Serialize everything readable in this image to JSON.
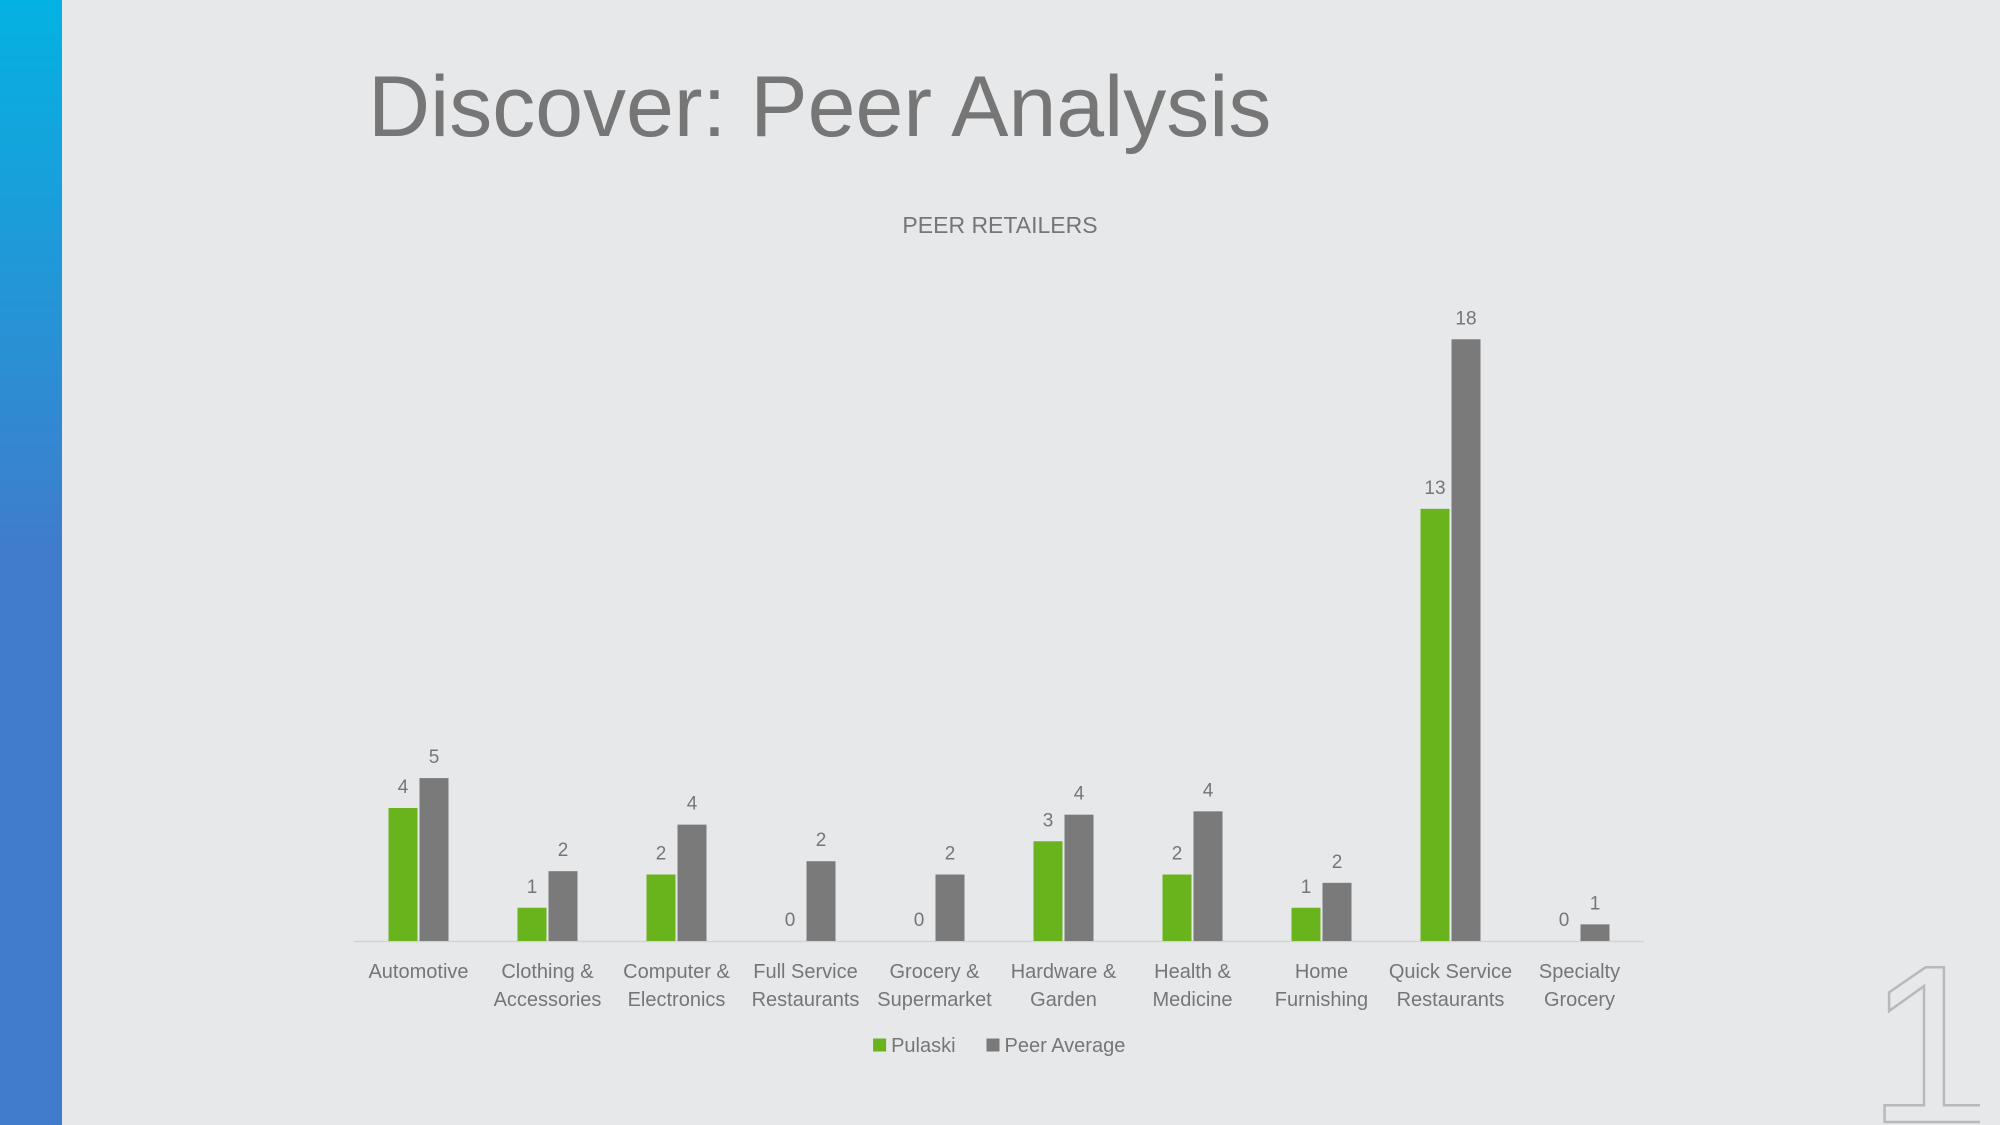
{
  "slide": {
    "title": "Discover: Peer Analysis",
    "slide_number": "1"
  },
  "colors": {
    "background": "#e7e8ea",
    "accent_top": "#04b2e2",
    "accent_bottom": "#417bcb",
    "pulaski": "#69b31d",
    "peer_average": "#7a7a7a",
    "text": "#767676"
  },
  "chart_data": {
    "type": "bar",
    "title": "PEER RETAILERS",
    "categories": [
      [
        "Automotive"
      ],
      [
        "Clothing &",
        "Accessories"
      ],
      [
        "Computer &",
        "Electronics"
      ],
      [
        "Full Service",
        "Restaurants"
      ],
      [
        "Grocery &",
        "Supermarket"
      ],
      [
        "Hardware &",
        "Garden"
      ],
      [
        "Health &",
        "Medicine"
      ],
      [
        "Home",
        "Furnishing"
      ],
      [
        "Quick Service",
        "Restaurants"
      ],
      [
        "Specialty",
        "Grocery"
      ]
    ],
    "series": [
      {
        "name": "Pulaski",
        "color": "#69b31d",
        "values": [
          4,
          1,
          2,
          0,
          0,
          3,
          2,
          1,
          13,
          0
        ],
        "labels": [
          "4",
          "1",
          "2",
          "0",
          "0",
          "3",
          "2",
          "1",
          "13",
          "0"
        ]
      },
      {
        "name": "Peer Average",
        "color": "#7a7a7a",
        "values": [
          4.9,
          2.1,
          3.5,
          2.4,
          2.0,
          3.8,
          3.9,
          1.75,
          18.1,
          0.5
        ],
        "labels": [
          "5",
          "2",
          "4",
          "2",
          "2",
          "4",
          "4",
          "2",
          "18",
          "1"
        ]
      }
    ],
    "ylim": [
      0,
      18.5
    ],
    "grid": false,
    "legend_position": "bottom"
  }
}
